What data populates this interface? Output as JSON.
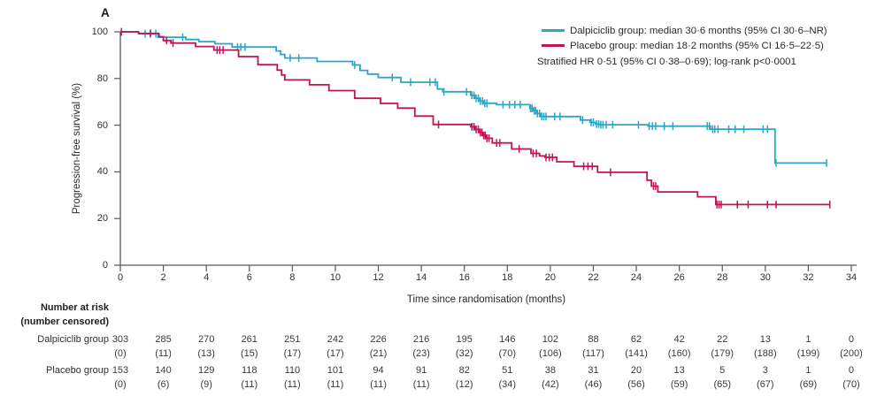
{
  "panel_label": "A",
  "legend": {
    "rows": [
      {
        "series": "dalpiciclib",
        "text": "Dalpiciclib group: median 30·6 months (95% CI 30·6–NR)"
      },
      {
        "series": "placebo",
        "text": "Placebo group: median 18·2 months (95% CI 16·5–22·5)"
      },
      {
        "series": null,
        "text": "Stratified HR 0·51 (95% CI 0·38–0·69); log-rank p<0·0001"
      }
    ]
  },
  "colors": {
    "axis": "#57575a",
    "text": "#2b2b2b",
    "table_text": "#3a3a3a"
  },
  "chart_data": {
    "type": "line",
    "subtype": "kaplan_meier_step",
    "title": "",
    "xlabel": "Time since randomisation (months)",
    "ylabel": "Progression-free survival (%)",
    "xlim": [
      0,
      34
    ],
    "ylim": [
      0,
      100
    ],
    "x_ticks": [
      0,
      2,
      4,
      6,
      8,
      10,
      12,
      14,
      16,
      18,
      20,
      22,
      24,
      26,
      28,
      30,
      32,
      34
    ],
    "y_ticks": [
      100,
      80,
      60,
      40,
      20,
      0
    ],
    "grid": false,
    "legend_position": "top-right",
    "series": [
      {
        "name": "Dalpiciclib group",
        "color": "#2ba6c7",
        "median": "30·6 months",
        "steps": [
          [
            0,
            100
          ],
          [
            0.85,
            99.2
          ],
          [
            1.75,
            97.7
          ],
          [
            3.05,
            96.7
          ],
          [
            3.65,
            95.8
          ],
          [
            4.4,
            94.9
          ],
          [
            5.2,
            93.5
          ],
          [
            7.25,
            91.8
          ],
          [
            7.45,
            90.3
          ],
          [
            7.65,
            88.8
          ],
          [
            9.15,
            87.3
          ],
          [
            10.8,
            85.8
          ],
          [
            11.15,
            83.5
          ],
          [
            11.5,
            81.9
          ],
          [
            12.0,
            80.4
          ],
          [
            13.05,
            78.4
          ],
          [
            14.75,
            75.5
          ],
          [
            15.0,
            74.3
          ],
          [
            16.3,
            72.8
          ],
          [
            16.5,
            71.5
          ],
          [
            16.7,
            70.3
          ],
          [
            16.9,
            69.4
          ],
          [
            17.5,
            68.8
          ],
          [
            19.05,
            67.2
          ],
          [
            19.2,
            66.2
          ],
          [
            19.35,
            65.0
          ],
          [
            19.55,
            63.7
          ],
          [
            21.4,
            62.2
          ],
          [
            21.85,
            61.2
          ],
          [
            22.1,
            60.5
          ],
          [
            22.3,
            60.2
          ],
          [
            24.55,
            59.6
          ],
          [
            27.45,
            58.3
          ],
          [
            30.45,
            43.8
          ]
        ],
        "end": 32.85,
        "censors": [
          [
            1.15,
            99.2
          ],
          [
            1.4,
            99.2
          ],
          [
            1.65,
            99.2
          ],
          [
            2.9,
            97.7
          ],
          [
            5.45,
            93.5
          ],
          [
            5.6,
            93.5
          ],
          [
            5.8,
            93.5
          ],
          [
            7.9,
            88.8
          ],
          [
            8.3,
            88.8
          ],
          [
            10.9,
            85.8
          ],
          [
            12.65,
            80.4
          ],
          [
            13.5,
            78.4
          ],
          [
            14.4,
            78.4
          ],
          [
            14.65,
            78.4
          ],
          [
            15.05,
            74.3
          ],
          [
            16.1,
            74.3
          ],
          [
            16.35,
            72.8
          ],
          [
            16.45,
            72.8
          ],
          [
            16.55,
            71.5
          ],
          [
            16.65,
            71.5
          ],
          [
            16.75,
            70.3
          ],
          [
            16.85,
            70.3
          ],
          [
            16.95,
            69.4
          ],
          [
            17.05,
            69.4
          ],
          [
            17.8,
            68.8
          ],
          [
            18.1,
            68.8
          ],
          [
            18.35,
            68.8
          ],
          [
            18.6,
            68.8
          ],
          [
            19.08,
            67.2
          ],
          [
            19.15,
            67.2
          ],
          [
            19.25,
            66.2
          ],
          [
            19.32,
            66.2
          ],
          [
            19.4,
            65.0
          ],
          [
            19.5,
            65.0
          ],
          [
            19.6,
            63.7
          ],
          [
            19.7,
            63.7
          ],
          [
            19.8,
            63.7
          ],
          [
            20.2,
            63.7
          ],
          [
            20.45,
            63.7
          ],
          [
            21.5,
            62.2
          ],
          [
            21.9,
            61.2
          ],
          [
            22.0,
            61.2
          ],
          [
            22.15,
            60.5
          ],
          [
            22.25,
            60.5
          ],
          [
            22.35,
            60.2
          ],
          [
            22.45,
            60.2
          ],
          [
            22.6,
            60.2
          ],
          [
            22.9,
            60.2
          ],
          [
            24.1,
            60.2
          ],
          [
            24.6,
            59.6
          ],
          [
            24.75,
            59.6
          ],
          [
            24.9,
            59.6
          ],
          [
            25.3,
            59.6
          ],
          [
            25.7,
            59.6
          ],
          [
            27.3,
            59.6
          ],
          [
            27.4,
            59.6
          ],
          [
            27.55,
            58.3
          ],
          [
            27.65,
            58.3
          ],
          [
            27.8,
            58.3
          ],
          [
            28.3,
            58.3
          ],
          [
            28.6,
            58.3
          ],
          [
            29.0,
            58.3
          ],
          [
            29.9,
            58.3
          ],
          [
            30.1,
            58.3
          ],
          [
            30.5,
            43.8
          ],
          [
            32.85,
            43.8
          ]
        ]
      },
      {
        "name": "Placebo group",
        "color": "#bf1456",
        "median": "18·2 months",
        "steps": [
          [
            0,
            100
          ],
          [
            0.85,
            99.3
          ],
          [
            1.8,
            97.9
          ],
          [
            2.0,
            96.3
          ],
          [
            2.35,
            95.2
          ],
          [
            3.5,
            93.7
          ],
          [
            4.35,
            92.2
          ],
          [
            5.5,
            89.4
          ],
          [
            6.4,
            85.9
          ],
          [
            7.3,
            83.6
          ],
          [
            7.5,
            81.5
          ],
          [
            7.65,
            79.4
          ],
          [
            8.8,
            77.3
          ],
          [
            9.7,
            74.8
          ],
          [
            10.9,
            71.5
          ],
          [
            12.1,
            69.3
          ],
          [
            12.9,
            67.3
          ],
          [
            13.7,
            63.9
          ],
          [
            14.55,
            60.3
          ],
          [
            16.3,
            59.3
          ],
          [
            16.5,
            58.2
          ],
          [
            16.7,
            56.9
          ],
          [
            16.85,
            55.6
          ],
          [
            17.0,
            54.4
          ],
          [
            17.3,
            52.4
          ],
          [
            18.2,
            49.8
          ],
          [
            19.1,
            47.9
          ],
          [
            19.5,
            46.8
          ],
          [
            19.75,
            46.2
          ],
          [
            20.3,
            44.3
          ],
          [
            21.1,
            42.4
          ],
          [
            22.2,
            39.8
          ],
          [
            24.5,
            36.4
          ],
          [
            24.7,
            33.9
          ],
          [
            25.0,
            31.4
          ],
          [
            26.85,
            29.3
          ],
          [
            27.7,
            26.0
          ]
        ],
        "end": 33.0,
        "censors": [
          [
            0.05,
            100
          ],
          [
            1.4,
            99.3
          ],
          [
            2.15,
            96.3
          ],
          [
            2.45,
            95.2
          ],
          [
            4.5,
            92.2
          ],
          [
            4.62,
            92.2
          ],
          [
            4.78,
            92.2
          ],
          [
            14.8,
            60.3
          ],
          [
            16.35,
            59.3
          ],
          [
            16.45,
            59.3
          ],
          [
            16.55,
            58.2
          ],
          [
            16.65,
            58.2
          ],
          [
            16.75,
            56.9
          ],
          [
            16.82,
            56.9
          ],
          [
            16.9,
            55.6
          ],
          [
            16.97,
            55.6
          ],
          [
            17.05,
            54.4
          ],
          [
            17.15,
            54.4
          ],
          [
            17.5,
            52.4
          ],
          [
            17.65,
            52.4
          ],
          [
            18.55,
            49.8
          ],
          [
            19.2,
            47.9
          ],
          [
            19.35,
            47.9
          ],
          [
            19.8,
            46.2
          ],
          [
            19.95,
            46.2
          ],
          [
            20.1,
            46.2
          ],
          [
            21.55,
            42.4
          ],
          [
            21.75,
            42.4
          ],
          [
            21.95,
            42.4
          ],
          [
            22.8,
            39.8
          ],
          [
            24.8,
            33.9
          ],
          [
            24.9,
            33.9
          ],
          [
            27.75,
            26.0
          ],
          [
            27.85,
            26.0
          ],
          [
            27.95,
            26.0
          ],
          [
            28.7,
            26.0
          ],
          [
            29.2,
            26.0
          ],
          [
            30.1,
            26.0
          ],
          [
            30.5,
            26.0
          ],
          [
            33.0,
            26.0
          ]
        ]
      }
    ]
  },
  "risk_table": {
    "header_line1": "Number at risk",
    "header_line2": "(number censored)",
    "time_points": [
      0,
      2,
      4,
      6,
      8,
      10,
      12,
      14,
      16,
      18,
      20,
      22,
      24,
      26,
      28,
      30,
      32,
      34
    ],
    "groups": [
      {
        "label": "Dalpiciclib group",
        "at_risk": [
          303,
          285,
          270,
          261,
          251,
          242,
          226,
          216,
          195,
          146,
          102,
          88,
          62,
          42,
          22,
          13,
          1,
          0
        ],
        "censored": [
          "(0)",
          "(11)",
          "(13)",
          "(15)",
          "(17)",
          "(17)",
          "(21)",
          "(23)",
          "(32)",
          "(70)",
          "(106)",
          "(117)",
          "(141)",
          "(160)",
          "(179)",
          "(188)",
          "(199)",
          "(200)"
        ]
      },
      {
        "label": "Placebo group",
        "at_risk": [
          153,
          140,
          129,
          118,
          110,
          101,
          94,
          91,
          82,
          51,
          38,
          31,
          20,
          13,
          5,
          3,
          1,
          0
        ],
        "censored": [
          "(0)",
          "(6)",
          "(9)",
          "(11)",
          "(11)",
          "(11)",
          "(11)",
          "(11)",
          "(12)",
          "(34)",
          "(42)",
          "(46)",
          "(56)",
          "(59)",
          "(65)",
          "(67)",
          "(69)",
          "(70)"
        ]
      }
    ]
  }
}
